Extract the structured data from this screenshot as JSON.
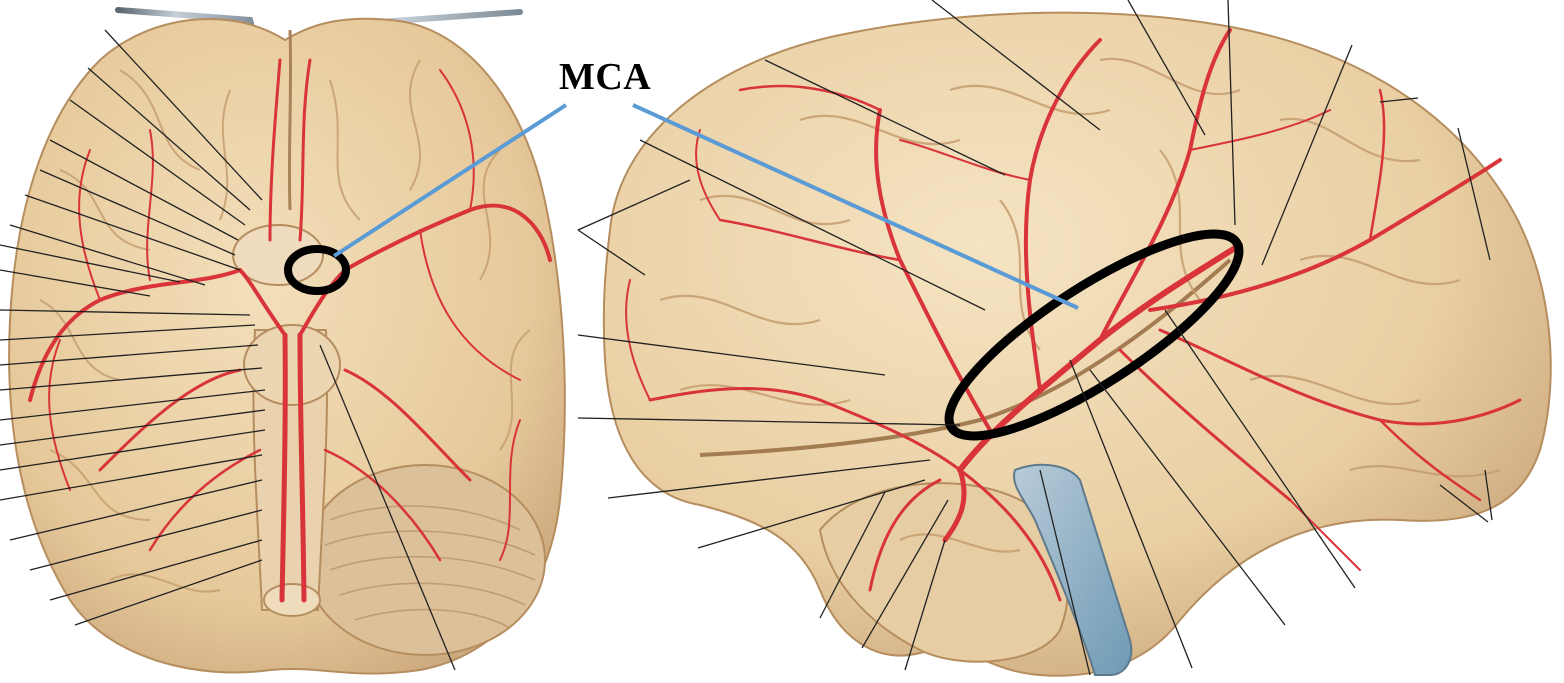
{
  "image": {
    "description_kind": "anatomical illustration",
    "panels": [
      "inferior-view",
      "lateral-view"
    ]
  },
  "annotation": {
    "label": "MCA",
    "label_color": "#000000",
    "pointer_color": "#5b9bd5",
    "highlight_color": "#000000"
  },
  "colors": {
    "background": "#ffffff",
    "brain_tissue": "#e8cfa3",
    "brain_shadow": "#c9a77a",
    "artery": "#d8343a",
    "leader_line": "#222222",
    "retractor_metal": "#9aa4ad"
  }
}
